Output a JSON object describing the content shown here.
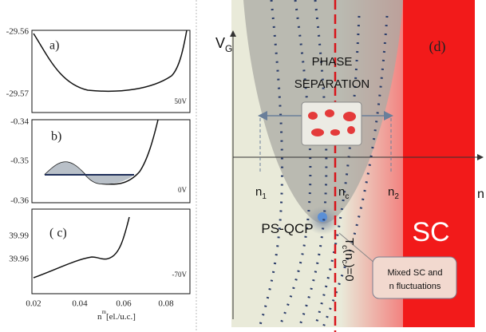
{
  "left": {
    "panel_a": {
      "label": "a)",
      "voltage": "50V",
      "yticks": [
        "-29.56",
        "-29.57"
      ]
    },
    "panel_b": {
      "label": "b)",
      "voltage": "0V",
      "yticks": [
        "-0.34",
        "-0.35",
        "-0.36"
      ]
    },
    "panel_c": {
      "label": "( c)",
      "voltage": "-70V",
      "yticks": [
        "39.99",
        "39.96"
      ]
    },
    "xticks": [
      "0.02",
      "0.04",
      "0.06",
      "0.08"
    ],
    "xlabel": {
      "symbol": "n",
      "superscript": "m",
      "unit": "[el./u.c.]"
    }
  },
  "right": {
    "panel_label": "(d)",
    "y_axis": {
      "symbol": "V",
      "subscript": "G"
    },
    "x_axis": "n",
    "n1": {
      "symbol": "n",
      "subscript": "1"
    },
    "nc": {
      "symbol": "n",
      "subscript": "c"
    },
    "n2": {
      "symbol": "n",
      "subscript": "2"
    },
    "phase_separation": [
      "PHASE",
      "SEPARATION"
    ],
    "sc": "SC",
    "ps_qcp": "PS-QCP",
    "tc": {
      "symbol": "T",
      "subscript": "c",
      "rest": "(n",
      "sub2": "c",
      "end": ")=0"
    },
    "box": [
      "Mixed SC and",
      "n fluctuations"
    ]
  }
}
